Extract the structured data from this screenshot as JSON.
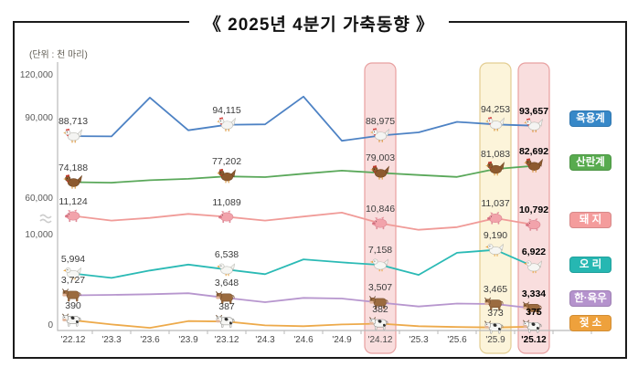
{
  "title": "《 2025년 4분기 가축동향 》",
  "unit_label": "(단위 : 천 마리)",
  "chart_data": {
    "type": "line",
    "title": "2025년 4분기 가축동향",
    "unit": "천 마리",
    "x_labels": [
      "'22.12",
      "'23.3",
      "'23.6",
      "'23.9",
      "'23.12",
      "'24.3",
      "'24.6",
      "'24.9",
      "'24.12",
      "'25.3",
      "'25.6",
      "'25.9",
      "'25.12"
    ],
    "y_ticks": [
      "120,000",
      "90,000",
      "60,000",
      "10,000",
      "0"
    ],
    "axis_break_between": [
      "10,000",
      "60,000"
    ],
    "grid": false,
    "legend_position": "right",
    "highlighted_columns": [
      {
        "x_label": "'24.12",
        "index": 8,
        "style": "pink"
      },
      {
        "x_label": "'25.9",
        "index": 11,
        "style": "yellow"
      },
      {
        "x_label": "'25.12",
        "index": 12,
        "style": "pink",
        "bold": true
      }
    ],
    "labeled_indices": [
      0,
      4,
      8,
      11,
      12
    ],
    "band_colors": {
      "pink": {
        "fill": "#f9dede",
        "stroke": "#e8a0a0"
      },
      "yellow": {
        "fill": "#fcf4da",
        "stroke": "#e3cd92"
      }
    },
    "series": [
      {
        "id": "broiler",
        "name": "육용계",
        "legend_label": "육용계",
        "line_color": "#4d82c4",
        "badge_color": "#3788c8",
        "icon": "white-chicken-icon",
        "values": [
          88713,
          88600,
          107000,
          91500,
          94115,
          94300,
          107500,
          86500,
          88975,
          90500,
          95500,
          94253,
          93657
        ],
        "point_labels": {
          "0": "88,713",
          "4": "94,115",
          "8": "88,975",
          "11": "94,253",
          "12": "93,657"
        }
      },
      {
        "id": "layer",
        "name": "산란계",
        "legend_label": "산란계",
        "line_color": "#5aa85a",
        "badge_color": "#58ab4f",
        "icon": "brown-hen-icon",
        "values": [
          74188,
          73900,
          75200,
          75900,
          77202,
          76800,
          78600,
          80200,
          79003,
          77900,
          76900,
          81083,
          82692
        ],
        "point_labels": {
          "0": "74,188",
          "4": "77,202",
          "8": "79,003",
          "11": "81,083",
          "12": "82,692"
        }
      },
      {
        "id": "pig",
        "name": "돼지",
        "legend_label": "돼 지",
        "line_color": "#f09b98",
        "badge_color": "#f49c9c",
        "icon": "pig-icon",
        "values": [
          11124,
          10950,
          11050,
          11200,
          11089,
          10950,
          11100,
          11250,
          10846,
          10600,
          10700,
          11037,
          10792
        ],
        "point_labels": {
          "0": "11,124",
          "4": "11,089",
          "8": "10,846",
          "11": "11,037",
          "12": "10,792"
        }
      },
      {
        "id": "duck",
        "name": "오리",
        "legend_label": "오 리",
        "line_color": "#2bbab5",
        "badge_color": "#26b7b2",
        "icon": "duck-icon",
        "values": [
          5994,
          5400,
          6400,
          7200,
          6538,
          5900,
          7900,
          7500,
          7158,
          5800,
          8800,
          9190,
          6922
        ],
        "point_labels": {
          "0": "5,994",
          "4": "6,538",
          "8": "7,158",
          "11": "9,190",
          "12": "6,922"
        }
      },
      {
        "id": "beef",
        "name": "한·육우",
        "legend_label": "한·육우",
        "line_color": "#b796ce",
        "badge_color": "#b593cd",
        "icon": "beef-cow-icon",
        "values": [
          3727,
          3740,
          3760,
          3790,
          3648,
          3520,
          3650,
          3630,
          3507,
          3390,
          3480,
          3465,
          3334
        ],
        "point_labels": {
          "0": "3,727",
          "4": "3,648",
          "8": "3,507",
          "11": "3,465",
          "12": "3,334"
        }
      },
      {
        "id": "dairy",
        "name": "젖소",
        "legend_label": "젖 소",
        "line_color": "#edaa4b",
        "badge_color": "#eea13c",
        "icon": "dairy-cow-icon",
        "values": [
          390,
          380,
          372,
          388,
          387,
          378,
          376,
          380,
          382,
          376,
          374,
          373,
          375
        ],
        "point_labels": {
          "0": "390",
          "4": "387",
          "8": "382",
          "11": "373",
          "12": "375"
        }
      }
    ]
  }
}
